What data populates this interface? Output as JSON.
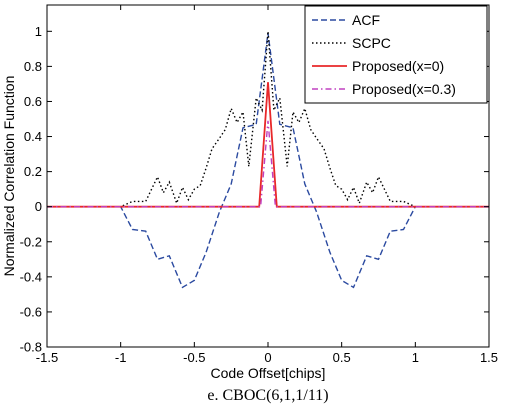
{
  "chart_data": {
    "type": "line",
    "xlabel": "Code Offset[chips]",
    "ylabel": "Normalized Correlation Function",
    "caption": "e. CBOC(6,1,1/11)",
    "xlim": [
      -1.5,
      1.5
    ],
    "ylim": [
      -0.8,
      1.15
    ],
    "xticks": [
      -1.5,
      -1,
      -0.5,
      0,
      0.5,
      1,
      1.5
    ],
    "xtick_labels": [
      "-1.5",
      "-1",
      "-0.5",
      "0",
      "0.5",
      "1",
      "1.5"
    ],
    "yticks": [
      -0.8,
      -0.6,
      -0.4,
      -0.2,
      0,
      0.2,
      0.4,
      0.6,
      0.8,
      1
    ],
    "ytick_labels": [
      "-0.8",
      "-0.6",
      "-0.4",
      "-0.2",
      "0",
      "0.2",
      "0.4",
      "0.6",
      "0.8",
      "1"
    ],
    "grid": false,
    "legend_position": "top-right",
    "series": [
      {
        "name": "ACF",
        "color": "#2B4AA0",
        "dash": "dashed",
        "x": [
          -1.5,
          -1.0,
          -0.92,
          -0.83,
          -0.75,
          -0.67,
          -0.58,
          -0.5,
          -0.42,
          -0.33,
          -0.25,
          -0.17,
          -0.08,
          0,
          0.08,
          0.17,
          0.25,
          0.33,
          0.42,
          0.5,
          0.58,
          0.67,
          0.75,
          0.83,
          0.92,
          1.0,
          1.5
        ],
        "y": [
          0,
          0,
          -0.13,
          -0.14,
          -0.3,
          -0.28,
          -0.46,
          -0.42,
          -0.26,
          -0.03,
          0.13,
          0.45,
          0.47,
          0.99,
          0.47,
          0.45,
          0.13,
          -0.03,
          -0.26,
          -0.42,
          -0.46,
          -0.28,
          -0.3,
          -0.14,
          -0.13,
          0,
          0
        ]
      },
      {
        "name": "SCPC",
        "color": "#000000",
        "dash": "dotted",
        "x": [
          -1.5,
          -1.0,
          -0.92,
          -0.83,
          -0.75,
          -0.71,
          -0.67,
          -0.62,
          -0.58,
          -0.54,
          -0.5,
          -0.46,
          -0.42,
          -0.38,
          -0.33,
          -0.29,
          -0.25,
          -0.21,
          -0.17,
          -0.13,
          -0.08,
          -0.04,
          0,
          0.04,
          0.08,
          0.13,
          0.17,
          0.21,
          0.25,
          0.29,
          0.33,
          0.38,
          0.42,
          0.46,
          0.5,
          0.54,
          0.58,
          0.62,
          0.67,
          0.71,
          0.75,
          0.83,
          0.92,
          1.0,
          1.5
        ],
        "y": [
          0,
          0,
          0.03,
          0.03,
          0.17,
          0.08,
          0.14,
          0.02,
          0.11,
          0.04,
          0.1,
          0.12,
          0.22,
          0.33,
          0.39,
          0.44,
          0.56,
          0.48,
          0.54,
          0.23,
          0.62,
          0.55,
          1.0,
          0.55,
          0.62,
          0.23,
          0.54,
          0.48,
          0.56,
          0.44,
          0.39,
          0.33,
          0.22,
          0.12,
          0.1,
          0.04,
          0.11,
          0.02,
          0.14,
          0.08,
          0.17,
          0.03,
          0.03,
          0,
          0
        ]
      },
      {
        "name": "Proposed(x=0)",
        "color": "#E8282A",
        "dash": "solid",
        "x": [
          -1.5,
          -0.06,
          0,
          0.06,
          1.5
        ],
        "y": [
          0,
          0,
          0.71,
          0,
          0
        ]
      },
      {
        "name": "Proposed(x=0.3)",
        "color": "#C040C0",
        "dash": "dashdot",
        "x": [
          -1.5,
          -0.05,
          0,
          0.05,
          1.5
        ],
        "y": [
          0,
          0,
          0.49,
          0,
          0
        ]
      }
    ]
  }
}
